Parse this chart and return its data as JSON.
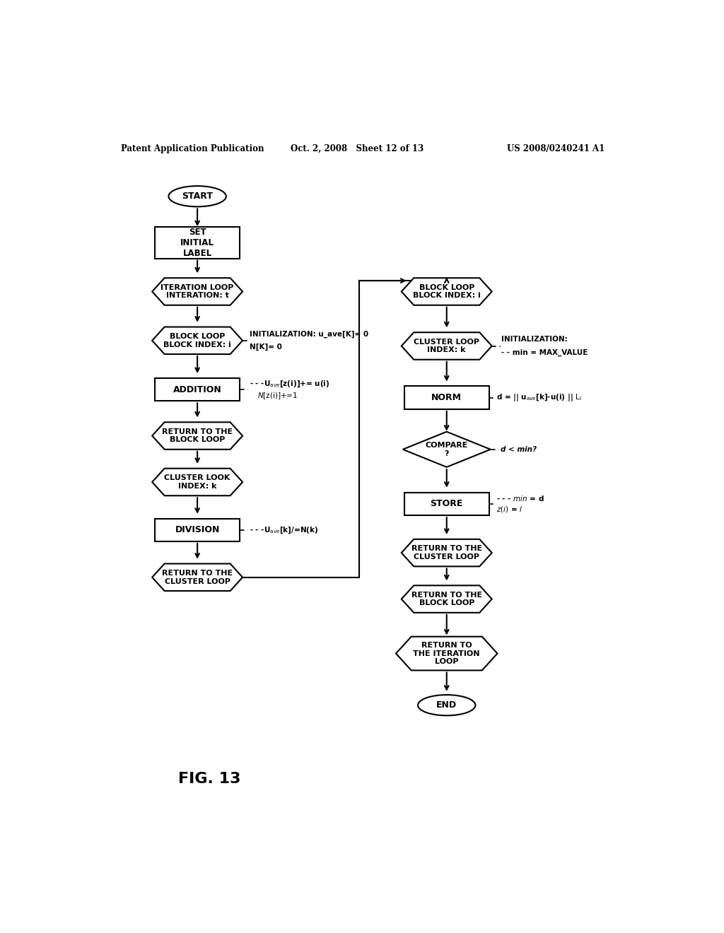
{
  "title_left": "Patent Application Publication",
  "title_mid": "Oct. 2, 2008   Sheet 12 of 13",
  "title_right": "US 2008/0240241 A1",
  "fig_label": "FIG. 13",
  "background": "#ffffff"
}
